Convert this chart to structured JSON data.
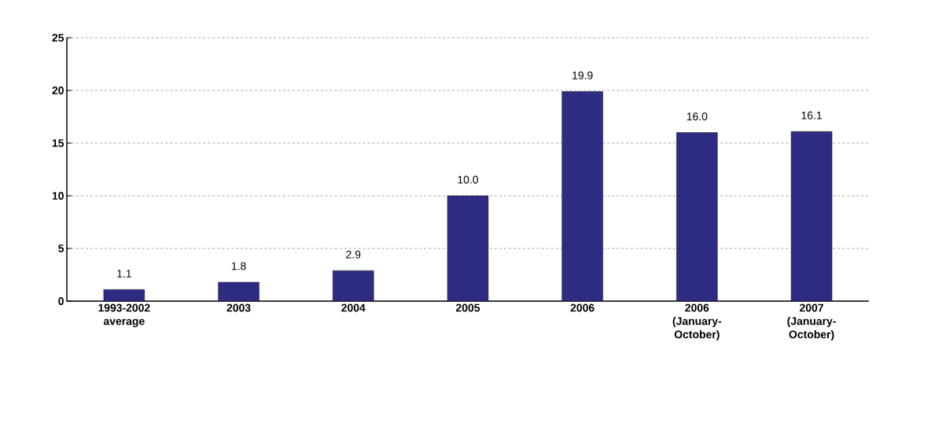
{
  "chart_data": {
    "type": "bar",
    "categories": [
      "1993-2002 average",
      "2003",
      "2004",
      "2005",
      "2006",
      "2006 (January-October)",
      "2007 (January-October)"
    ],
    "values": [
      1.1,
      1.8,
      2.9,
      10.0,
      19.9,
      16.0,
      16.1
    ],
    "value_labels": [
      "1.1",
      "1.8",
      "2.9",
      "10.0",
      "19.9",
      "16.0",
      "16.1"
    ],
    "color": "#2e2c82",
    "ylim": [
      0,
      25
    ],
    "yticks": [
      0,
      5,
      10,
      15,
      20,
      25
    ],
    "grid": "y"
  }
}
